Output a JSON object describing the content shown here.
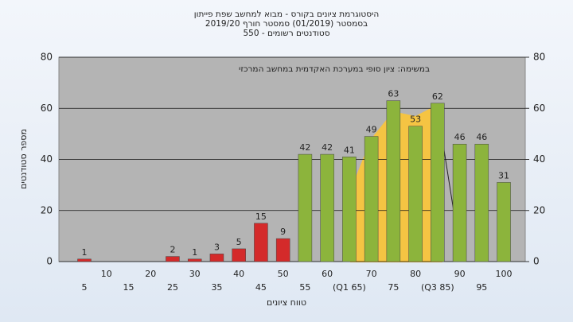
{
  "chart_data": {
    "type": "bar",
    "title": [
      "היסטוגרמת ציונים בקורס - מבוא למחשב שפת פייתון",
      "בסמסטר  (01/2019)  סמסטר חורף 2019/20",
      "סטודנטים רשומים - 550"
    ],
    "annotation": "במשימה: ציון סופי במערכת האקדמית במחשב המרכזי",
    "y_label": "מספר סטודנטים",
    "x_label": "טווח ציונים",
    "categories": [
      "5",
      "10",
      "15",
      "20",
      "25",
      "30",
      "35",
      "40",
      "45",
      "50",
      "55",
      "60",
      "(Q1 65)",
      "70",
      "75",
      "80",
      "(Q3 85)",
      "90",
      "95",
      "100"
    ],
    "values": [
      1,
      0,
      0,
      0,
      2,
      1,
      3,
      5,
      15,
      9,
      42,
      42,
      41,
      49,
      63,
      53,
      62,
      46,
      46,
      31
    ],
    "colors": [
      "#d42a2a",
      "#d42a2a",
      "#d42a2a",
      "#d42a2a",
      "#d42a2a",
      "#d42a2a",
      "#d42a2a",
      "#d42a2a",
      "#d42a2a",
      "#d42a2a",
      "#8cb43c",
      "#8cb43c",
      "#8cb43c",
      "#8cb43c",
      "#8cb43c",
      "#8cb43c",
      "#8cb43c",
      "#8cb43c",
      "#8cb43c",
      "#8cb43c"
    ],
    "ylim": [
      0,
      80
    ],
    "yticks": [
      0,
      20,
      40,
      60,
      80
    ],
    "y2lim": [
      0,
      80
    ],
    "y2ticks": [
      0,
      20,
      40,
      60,
      80
    ],
    "grid": true
  }
}
